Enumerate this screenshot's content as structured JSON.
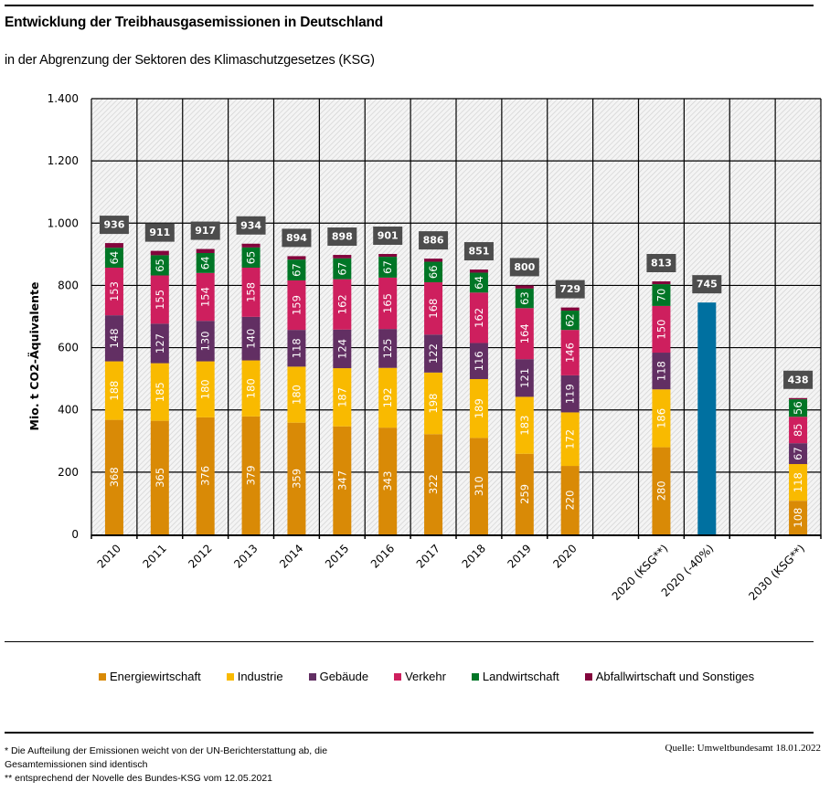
{
  "header": {
    "title": "Entwicklung der Treibhausgasemissionen in Deutschland",
    "subtitle": "in der Abgrenzung der Sektoren des Klimaschutzgesetzes (KSG)"
  },
  "chart_data": {
    "type": "bar",
    "stacked": true,
    "title": "Entwicklung der Treibhausgasemissionen in Deutschland",
    "subtitle": "in der Abgrenzung der Sektoren des Klimaschutzgesetzes (KSG)",
    "xlabel": "",
    "ylabel": "Mio. t CO2-Äquivalente",
    "ylim": [
      0,
      1400
    ],
    "yticks": [
      0,
      200,
      400,
      600,
      800,
      1000,
      1200,
      1400
    ],
    "ytick_labels": [
      "0",
      "200",
      "400",
      "600",
      "800",
      "1.000",
      "1.200",
      "1.400"
    ],
    "grid": true,
    "legend_position": "bottom",
    "categories": [
      "2010",
      "2011",
      "2012",
      "2013",
      "2014",
      "2015",
      "2016",
      "2017",
      "2018",
      "2019",
      "2020",
      "",
      "2020 (KSG**)",
      "2020 (-40%)",
      "",
      "2030 (KSG**)"
    ],
    "series": [
      {
        "name": "Energiewirtschaft",
        "color": "#D98A06",
        "values": [
          368,
          365,
          376,
          379,
          359,
          347,
          343,
          322,
          310,
          259,
          220,
          null,
          280,
          null,
          null,
          108
        ]
      },
      {
        "name": "Industrie",
        "color": "#F9BA00",
        "values": [
          188,
          185,
          180,
          180,
          180,
          187,
          192,
          198,
          189,
          183,
          172,
          null,
          186,
          null,
          null,
          118
        ]
      },
      {
        "name": "Gebäude",
        "color": "#622F63",
        "values": [
          148,
          127,
          130,
          140,
          118,
          124,
          125,
          122,
          116,
          121,
          119,
          null,
          118,
          null,
          null,
          67
        ]
      },
      {
        "name": "Verkehr",
        "color": "#CE1F5E",
        "values": [
          153,
          155,
          154,
          158,
          159,
          162,
          165,
          168,
          162,
          164,
          146,
          null,
          150,
          null,
          null,
          85
        ]
      },
      {
        "name": "Landwirtschaft",
        "color": "#007626",
        "values": [
          64,
          65,
          64,
          65,
          67,
          67,
          67,
          66,
          64,
          63,
          62,
          null,
          70,
          null,
          null,
          56
        ]
      },
      {
        "name": "Abfallwirtschaft und Sonstiges",
        "color": "#83053C",
        "values": [
          15,
          14,
          13,
          12,
          11,
          11,
          9,
          10,
          10,
          10,
          10,
          null,
          9,
          null,
          null,
          4
        ]
      }
    ],
    "target_bar": {
      "category": "2020 (-40%)",
      "value": 745,
      "color": "#0070A0"
    },
    "totals": [
      936,
      911,
      917,
      934,
      894,
      898,
      901,
      886,
      851,
      800,
      729,
      null,
      813,
      745,
      null,
      438
    ],
    "segment_labels_shown_for": [
      "Energiewirtschaft",
      "Industrie",
      "Gebäude",
      "Verkehr",
      "Landwirtschaft"
    ]
  },
  "legend": [
    {
      "label": "Energiewirtschaft",
      "color": "#D98A06"
    },
    {
      "label": "Industrie",
      "color": "#F9BA00"
    },
    {
      "label": "Gebäude",
      "color": "#622F63"
    },
    {
      "label": "Verkehr",
      "color": "#CE1F5E"
    },
    {
      "label": "Landwirtschaft",
      "color": "#007626"
    },
    {
      "label": "Abfallwirtschaft und Sonstiges",
      "color": "#83053C"
    }
  ],
  "footer": {
    "note_1": "* Die Aufteilung der Emissionen weicht von der UN-Berichterstattung ab, die Gesamtemissionen sind identisch",
    "note_2": "** entsprechend der Novelle des Bundes-KSG vom 12.05.2021",
    "source": "Quelle: Umweltbundesamt  18.01.2022"
  },
  "colors": {
    "total_label_bg": "#4D4D4D",
    "hatch_bg": "#F2F2F2",
    "hatch_line": "#D0D0D0"
  }
}
